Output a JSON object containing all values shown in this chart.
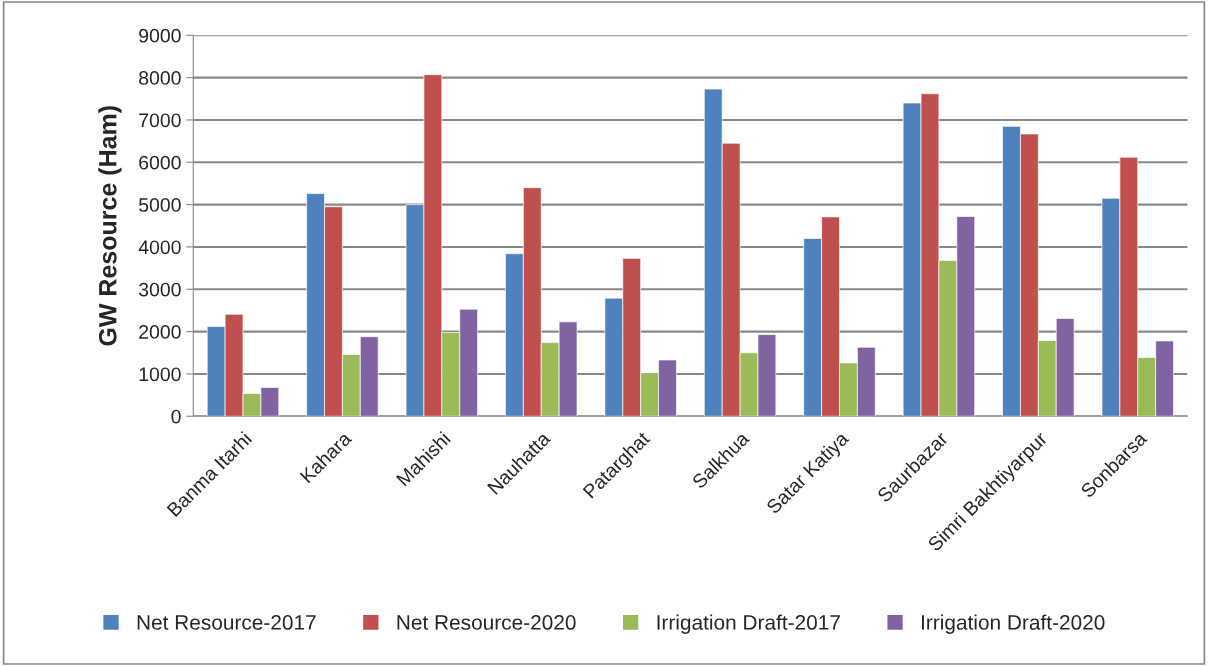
{
  "chart_data": {
    "type": "bar",
    "ylabel": "GW Resource (Ham)",
    "categories": [
      "Banma Itarhi",
      "Kahara",
      "Mahishi",
      "Nauhatta",
      "Patarghat",
      "Salkhua",
      "Satar Katiya",
      "Saurbazar",
      "Simri Bakhtiyarpur",
      "Sonbarsa"
    ],
    "series": [
      {
        "name": "Net Resource-2017",
        "color": "#4f81bd",
        "values": [
          2120,
          5260,
          5000,
          3840,
          2790,
          7730,
          4200,
          7400,
          6850,
          5150
        ]
      },
      {
        "name": "Net Resource-2020",
        "color": "#c0504d",
        "values": [
          2410,
          4950,
          8070,
          5400,
          3730,
          6450,
          4710,
          7620,
          6670,
          6120
        ]
      },
      {
        "name": "Irrigation Draft-2017",
        "color": "#9bbb59",
        "values": [
          540,
          1460,
          1980,
          1740,
          1030,
          1500,
          1260,
          3680,
          1790,
          1390
        ]
      },
      {
        "name": "Irrigation Draft-2020",
        "color": "#8064a2",
        "values": [
          680,
          1880,
          2530,
          2230,
          1330,
          1930,
          1630,
          4720,
          2310,
          1780
        ]
      }
    ],
    "ylim": [
      0,
      9000
    ],
    "yticks": [
      0,
      1000,
      2000,
      3000,
      4000,
      5000,
      6000,
      7000,
      8000,
      9000
    ],
    "grid": "y",
    "legend": "bottom"
  }
}
